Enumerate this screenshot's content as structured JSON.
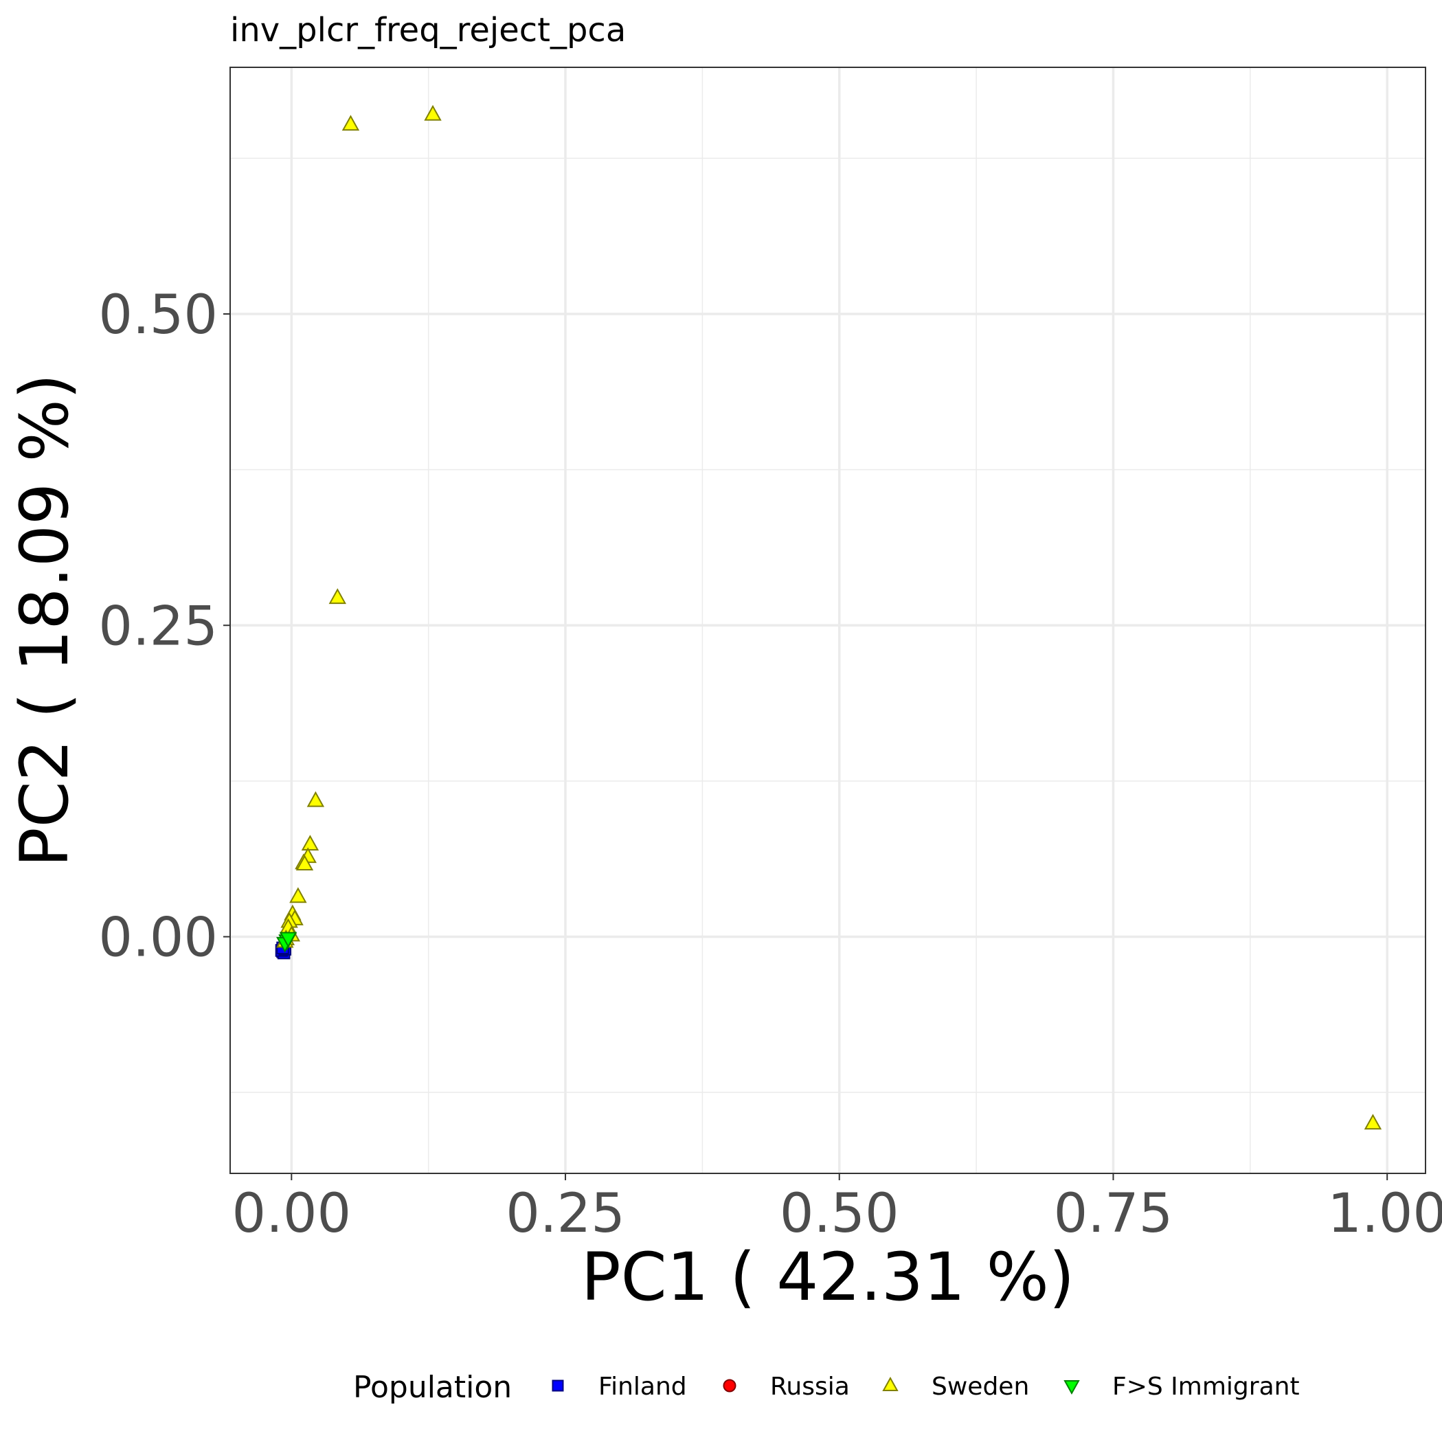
{
  "chart_data": {
    "type": "scatter",
    "title": "inv_plcr_freq_reject_pca",
    "xlabel": "PC1 ( 42.31 %)",
    "ylabel": "PC2 ( 18.09 %)",
    "xlim": [
      -0.056,
      1.035
    ],
    "ylim": [
      -0.19,
      0.698
    ],
    "x_ticks": [
      0.0,
      0.25,
      0.5,
      0.75,
      1.0
    ],
    "x_tick_labels": [
      "0.00",
      "0.25",
      "0.50",
      "0.75",
      "1.00"
    ],
    "y_ticks": [
      0.0,
      0.25,
      0.5
    ],
    "y_tick_labels": [
      "0.00",
      "0.25",
      "0.50"
    ],
    "grid": true,
    "legend": {
      "title": "Population",
      "position": "bottom",
      "entries": [
        {
          "name": "Finland",
          "shape": "square",
          "fill": "#0000ff"
        },
        {
          "name": "Russia",
          "shape": "circle",
          "fill": "#ff0000"
        },
        {
          "name": "Sweden",
          "shape": "triangle-up",
          "fill": "#ffff00"
        },
        {
          "name": "F>S Immigrant",
          "shape": "triangle-down",
          "fill": "#00ff00"
        }
      ]
    },
    "series": [
      {
        "name": "Finland",
        "points": [
          {
            "x": -0.008,
            "y": -0.012
          },
          {
            "x": -0.007,
            "y": -0.013
          },
          {
            "x": -0.009,
            "y": -0.011
          },
          {
            "x": -0.006,
            "y": -0.01
          },
          {
            "x": -0.008,
            "y": -0.009
          }
        ]
      },
      {
        "name": "Russia",
        "points": []
      },
      {
        "name": "Sweden",
        "points": [
          {
            "x": 0.054,
            "y": 0.652
          },
          {
            "x": 0.129,
            "y": 0.66
          },
          {
            "x": 0.042,
            "y": 0.272
          },
          {
            "x": 0.022,
            "y": 0.109
          },
          {
            "x": 0.017,
            "y": 0.074
          },
          {
            "x": 0.015,
            "y": 0.064
          },
          {
            "x": 0.011,
            "y": 0.059
          },
          {
            "x": 0.012,
            "y": 0.058
          },
          {
            "x": 0.006,
            "y": 0.032
          },
          {
            "x": 0.001,
            "y": 0.018
          },
          {
            "x": 0.003,
            "y": 0.014
          },
          {
            "x": -0.002,
            "y": 0.012
          },
          {
            "x": -0.003,
            "y": 0.007
          },
          {
            "x": 0.0,
            "y": 0.001
          },
          {
            "x": -0.005,
            "y": -0.002
          },
          {
            "x": -0.006,
            "y": -0.004
          },
          {
            "x": 0.987,
            "y": -0.15
          }
        ]
      },
      {
        "name": "F>S Immigrant",
        "points": [
          {
            "x": -0.004,
            "y": -0.003
          },
          {
            "x": -0.006,
            "y": -0.005
          },
          {
            "x": -0.003,
            "y": -0.001
          }
        ]
      }
    ]
  }
}
